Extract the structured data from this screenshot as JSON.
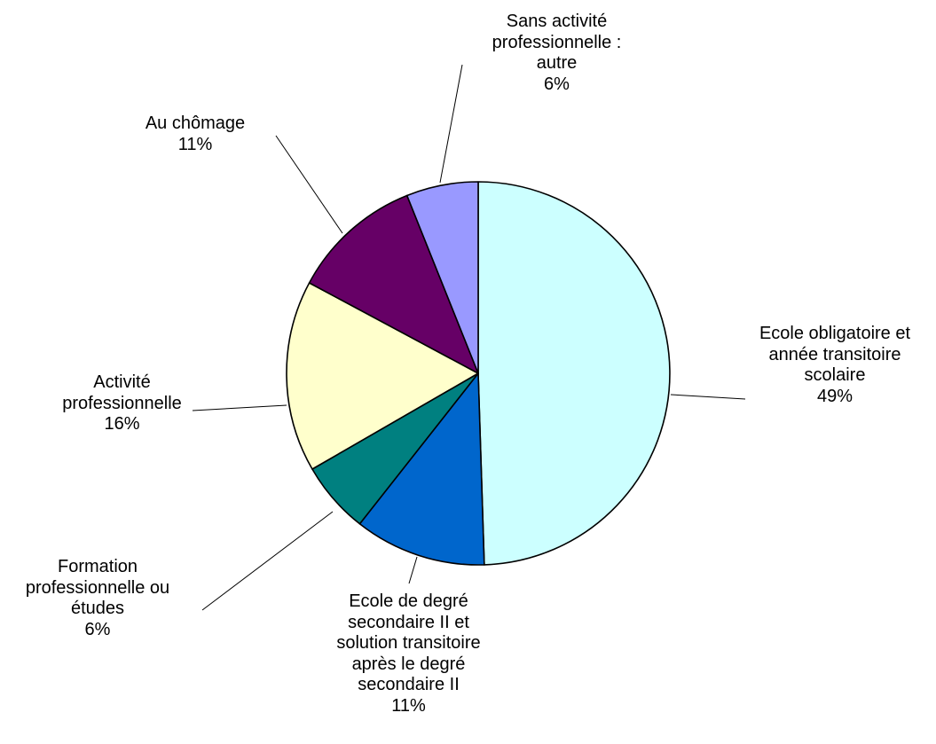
{
  "chart_data": {
    "type": "pie",
    "slices": [
      {
        "label_lines": [
          "Ecole obligatoire et",
          "année transitoire",
          "scolaire"
        ],
        "value": 49,
        "value_label": "49%",
        "color": "#CCFFFF"
      },
      {
        "label_lines": [
          "Ecole de degré",
          "secondaire II et",
          "solution transitoire",
          "après le degré",
          "secondaire II"
        ],
        "value": 11,
        "value_label": "11%",
        "color": "#0066CC"
      },
      {
        "label_lines": [
          "Formation",
          "professionnelle ou",
          "études"
        ],
        "value": 6,
        "value_label": "6%",
        "color": "#008080"
      },
      {
        "label_lines": [
          "Activité",
          "professionnelle"
        ],
        "value": 16,
        "value_label": "16%",
        "color": "#FFFFCC"
      },
      {
        "label_lines": [
          "Au chômage"
        ],
        "value": 11,
        "value_label": "11%",
        "color": "#660066"
      },
      {
        "label_lines": [
          "Sans activité",
          "professionnelle :",
          "autre"
        ],
        "value": 6,
        "value_label": "6%",
        "color": "#9999FF"
      }
    ],
    "start": "12 o'clock",
    "direction": "clockwise",
    "legend": "none"
  }
}
